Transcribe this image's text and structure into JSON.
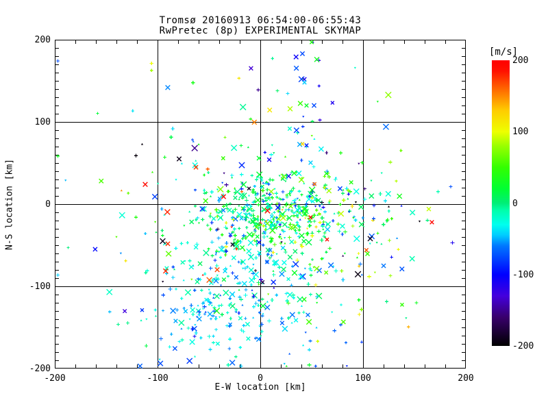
{
  "chart_data": {
    "type": "scatter",
    "title": "Tromsø 20160913 06:54:00-06:55:43",
    "subtitle": "RwPretec (8p) EXPERIMENTAL SKYMAP",
    "xlabel": "E-W location [km]",
    "ylabel": "N-S location [km]",
    "xlim": [
      -200,
      200
    ],
    "ylim": [
      -200,
      200
    ],
    "xticks": [
      -200,
      -100,
      0,
      100,
      200
    ],
    "yticks": [
      -200,
      -100,
      0,
      100,
      200
    ],
    "x_minor_step": 20,
    "y_minor_step": 10,
    "grid": true,
    "axes_color": "#000000",
    "background": "#ffffff",
    "marker_types": [
      "plus",
      "cross",
      "dot"
    ],
    "colorbar": {
      "label": "[m/s]",
      "ticks": [
        200,
        100,
        0,
        -100,
        -200
      ],
      "lim": [
        -200,
        200
      ],
      "stops": [
        [
          -200,
          "#000000"
        ],
        [
          -160,
          "#38006b"
        ],
        [
          -130,
          "#4400dd"
        ],
        [
          -100,
          "#0000ff"
        ],
        [
          -60,
          "#0077ff"
        ],
        [
          -45,
          "#00ccff"
        ],
        [
          -30,
          "#00ffee"
        ],
        [
          -10,
          "#00ffaa"
        ],
        [
          0,
          "#00ee77"
        ],
        [
          20,
          "#00ff33"
        ],
        [
          50,
          "#33ff00"
        ],
        [
          80,
          "#99ff00"
        ],
        [
          100,
          "#eeff00"
        ],
        [
          130,
          "#ffcc00"
        ],
        [
          160,
          "#ff6600"
        ],
        [
          185,
          "#ff1100"
        ],
        [
          200,
          "#ff0000"
        ]
      ]
    },
    "point_generation": {
      "seed": 20160913,
      "clip": 197,
      "clusters": [
        {
          "name": "core",
          "count": 320,
          "dist": "gauss",
          "cx": 8,
          "cy": -10,
          "sx": 36,
          "sy": 28,
          "v_mean": 5,
          "v_sigma": 40,
          "weights": [
            0.6,
            0.22,
            0.18
          ],
          "v_extreme": false
        },
        {
          "name": "lower-left",
          "count": 290,
          "dist": "gauss",
          "cx": -28,
          "cy": -110,
          "sx": 46,
          "sy": 42,
          "v_mean": -35,
          "v_sigma": 26,
          "weights": [
            0.52,
            0.28,
            0.2
          ],
          "v_extreme": false
        },
        {
          "name": "right-mid",
          "count": 165,
          "dist": "gauss",
          "cx": 60,
          "cy": -12,
          "sx": 42,
          "sy": 36,
          "v_mean": 20,
          "v_sigma": 60,
          "weights": [
            0.58,
            0.27,
            0.15
          ],
          "v_extreme": false
        },
        {
          "name": "halo",
          "count": 150,
          "dist": "gauss",
          "cx": -5,
          "cy": -10,
          "sx": 92,
          "sy": 75,
          "v_mean": -10,
          "v_sigma": 65,
          "weights": [
            0.55,
            0.25,
            0.2
          ],
          "v_extreme": false
        },
        {
          "name": "upper",
          "count": 38,
          "dist": "gauss",
          "cx": 30,
          "cy": 125,
          "sx": 48,
          "sy": 40,
          "v_mean": -15,
          "v_sigma": 75,
          "weights": [
            0.4,
            0.42,
            0.18
          ],
          "v_extreme": false
        },
        {
          "name": "extremes",
          "count": 26,
          "dist": "uniform",
          "cx": 0,
          "cy": -20,
          "sx": 110,
          "sy": 90,
          "v_mean": 0,
          "v_sigma": 0,
          "weights": [
            0.3,
            0.45,
            0.25
          ],
          "v_extreme": true
        }
      ]
    },
    "notable_points": [
      {
        "x": -112,
        "y": 24,
        "v": 190,
        "m": "cross"
      },
      {
        "x": -115,
        "y": 73,
        "v": -195,
        "m": "dot"
      },
      {
        "x": -121,
        "y": 59,
        "v": -195,
        "m": "plus"
      },
      {
        "x": -79,
        "y": 55,
        "v": -190,
        "m": "cross"
      },
      {
        "x": -93,
        "y": 57,
        "v": 30,
        "m": "plus"
      },
      {
        "x": -131,
        "y": -69,
        "v": 115,
        "m": "plus"
      },
      {
        "x": -121,
        "y": -16,
        "v": 40,
        "m": "plus"
      },
      {
        "x": -105,
        "y": 39,
        "v": 50,
        "m": "dot"
      },
      {
        "x": -140,
        "y": -40,
        "v": 60,
        "m": "dot"
      },
      {
        "x": -95,
        "y": -45,
        "v": -190,
        "m": "cross"
      },
      {
        "x": 167,
        "y": -22,
        "v": 195,
        "m": "cross"
      },
      {
        "x": 155,
        "y": -21,
        "v": -195,
        "m": "dot"
      },
      {
        "x": 164,
        "y": -6,
        "v": 90,
        "m": "cross"
      },
      {
        "x": 107,
        "y": -42,
        "v": -190,
        "m": "cross"
      },
      {
        "x": 125,
        "y": -3,
        "v": -195,
        "m": "dot"
      },
      {
        "x": 120,
        "y": -75,
        "v": -60,
        "m": "cross"
      },
      {
        "x": 152,
        "y": -120,
        "v": 30,
        "m": "plus"
      },
      {
        "x": 50,
        "y": 197,
        "v": 40,
        "m": "cross"
      },
      {
        "x": 41,
        "y": 183,
        "v": -75,
        "m": "cross"
      },
      {
        "x": 55,
        "y": 176,
        "v": 30,
        "m": "cross"
      },
      {
        "x": 43,
        "y": 148,
        "v": -45,
        "m": "cross"
      },
      {
        "x": 29,
        "y": 116,
        "v": 85,
        "m": "cross"
      },
      {
        "x": 45,
        "y": 120,
        "v": 25,
        "m": "cross"
      },
      {
        "x": -2,
        "y": 139,
        "v": -150,
        "m": "plus"
      },
      {
        "x": 65,
        "y": -43,
        "v": 190,
        "m": "cross"
      },
      {
        "x": 7,
        "y": -8,
        "v": 190,
        "m": "cross"
      },
      {
        "x": -28,
        "y": -28,
        "v": 185,
        "m": "dot"
      },
      {
        "x": -11,
        "y": 19,
        "v": -185,
        "m": "cross"
      },
      {
        "x": 60,
        "y": 2,
        "v": -190,
        "m": "plus"
      }
    ]
  }
}
